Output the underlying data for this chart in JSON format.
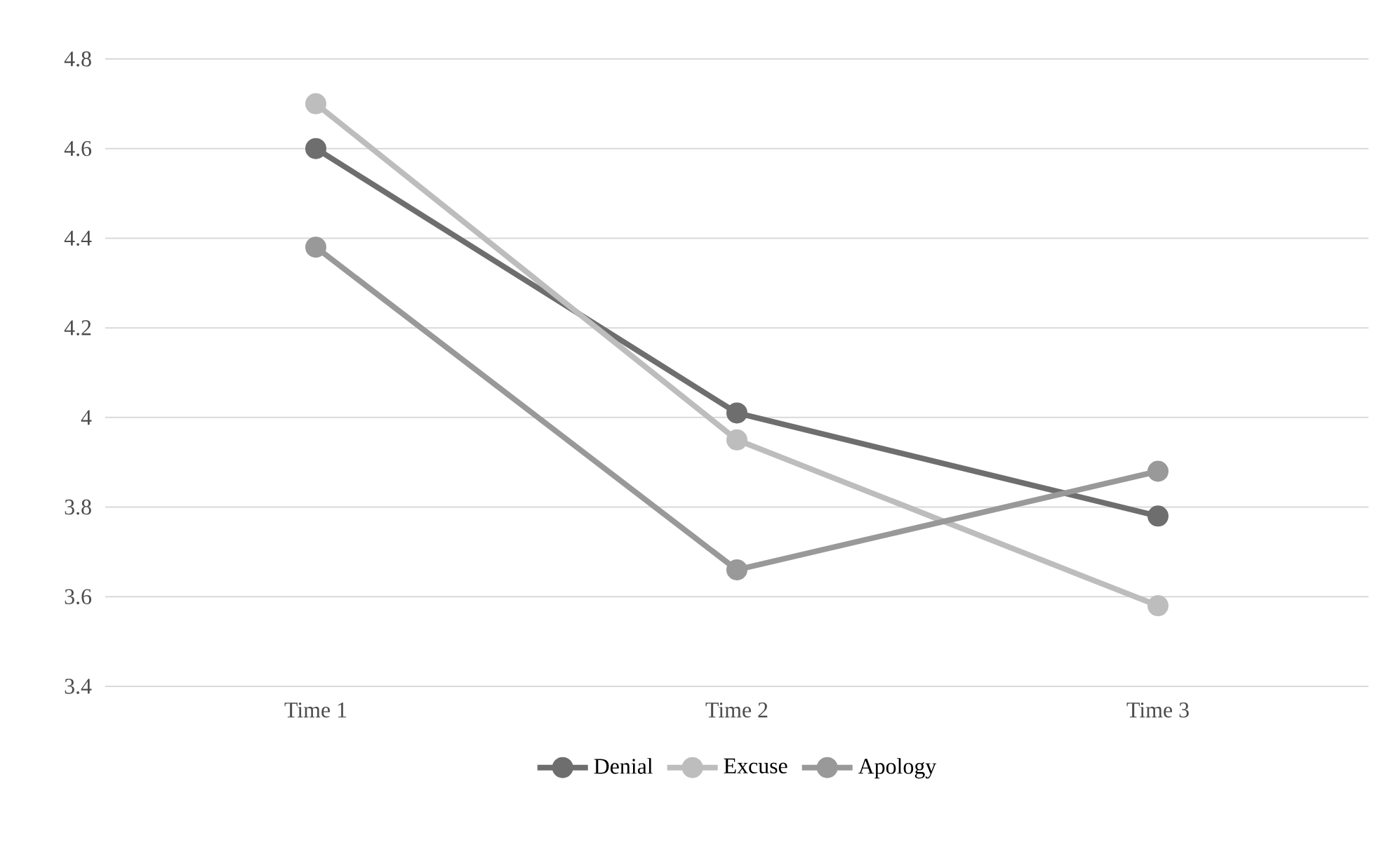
{
  "chart_data": {
    "type": "line",
    "categories": [
      "Time 1",
      "Time 2",
      "Time 3"
    ],
    "series": [
      {
        "name": "Denial",
        "color": "#6e6e6e",
        "values": [
          4.6,
          4.01,
          3.78
        ]
      },
      {
        "name": "Excuse",
        "color": "#bdbdbd",
        "values": [
          4.7,
          3.95,
          3.58
        ]
      },
      {
        "name": "Apology",
        "color": "#999999",
        "values": [
          4.38,
          3.66,
          3.88
        ]
      }
    ],
    "ylim": [
      3.4,
      4.8
    ],
    "yticks": [
      3.4,
      3.6,
      3.8,
      4,
      4.2,
      4.4,
      4.6,
      4.8
    ],
    "grid": "y",
    "legend": "bottom",
    "marker": "circle",
    "line_style": "solid"
  }
}
